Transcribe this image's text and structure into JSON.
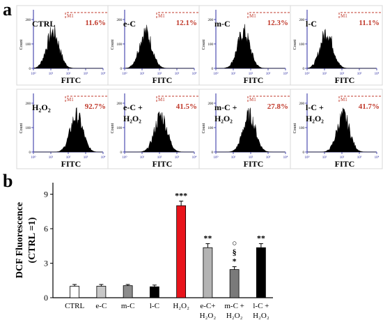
{
  "panel_labels": {
    "a": "a",
    "b": "b"
  },
  "chart_data": [
    {
      "type": "histogram",
      "panel": "a",
      "grid": "2x4",
      "xlabel": "FITC",
      "ylabel": "Count",
      "gate_label": "M1",
      "gate_color": "#c0392b",
      "xtick_labels": [
        "10⁰",
        "10¹",
        "10²",
        "10³",
        "10⁴"
      ],
      "ytick_labels": [
        "0",
        "100",
        "200"
      ],
      "y_axis_color": "#2a2aa0",
      "histograms": [
        {
          "label": "CTRL",
          "sub": "",
          "label2": "",
          "percent": "11.6%",
          "peak": 0.28
        },
        {
          "label": "e-C",
          "sub": "",
          "label2": "",
          "percent": "12.1%",
          "peak": 0.3
        },
        {
          "label": "m-C",
          "sub": "",
          "label2": "",
          "percent": "12.3%",
          "peak": 0.4
        },
        {
          "label": "l-C",
          "sub": "",
          "label2": "",
          "percent": "11.1%",
          "peak": 0.28
        },
        {
          "label": "H",
          "sub": "2",
          "label_tail": "O",
          "sub2": "2",
          "label2": "",
          "percent": "92.7%",
          "peak": 0.62
        },
        {
          "label": "e-C +",
          "sub": "",
          "label2": "H₂O₂",
          "percent": "41.5%",
          "peak": 0.52
        },
        {
          "label": "m-C +",
          "sub": "",
          "label2": "H₂O₂",
          "percent": "27.8%",
          "peak": 0.48
        },
        {
          "label": "l-C +",
          "sub": "",
          "label2": "H₂O₂",
          "percent": "41.7%",
          "peak": 0.52
        }
      ]
    },
    {
      "type": "bar",
      "panel": "b",
      "ylabel_line1": "DCF Fluorescence",
      "ylabel_line2": "(CTRL =1)",
      "ylim": [
        0,
        10
      ],
      "yticks": [
        0,
        3,
        6,
        9
      ],
      "categories": [
        {
          "line1": "CTRL",
          "line2": ""
        },
        {
          "line1": "e-C",
          "line2": ""
        },
        {
          "line1": "m-C",
          "line2": ""
        },
        {
          "line1": "l-C",
          "line2": ""
        },
        {
          "line1": "H₂O₂",
          "line2": ""
        },
        {
          "line1": "e-C+",
          "line2": "H₂O₂"
        },
        {
          "line1": "m-C +",
          "line2": "H₂O₂"
        },
        {
          "line1": "l-C +",
          "line2": "H₂O₂"
        }
      ],
      "values": [
        1.0,
        1.0,
        1.05,
        0.95,
        8.0,
        4.35,
        2.45,
        4.35
      ],
      "errors": [
        0.15,
        0.15,
        0.1,
        0.15,
        0.4,
        0.35,
        0.25,
        0.35
      ],
      "colors": [
        "#ffffff",
        "#c8c8c8",
        "#8c8c8c",
        "#000000",
        "#e8141b",
        "#b4b4b4",
        "#7a7a7a",
        "#000000"
      ],
      "annotations": [
        {
          "index": 4,
          "marks": [
            "***"
          ]
        },
        {
          "index": 5,
          "marks": [
            "**"
          ]
        },
        {
          "index": 6,
          "marks": [
            "*",
            "§",
            "○"
          ]
        },
        {
          "index": 7,
          "marks": [
            "**"
          ]
        }
      ]
    }
  ]
}
